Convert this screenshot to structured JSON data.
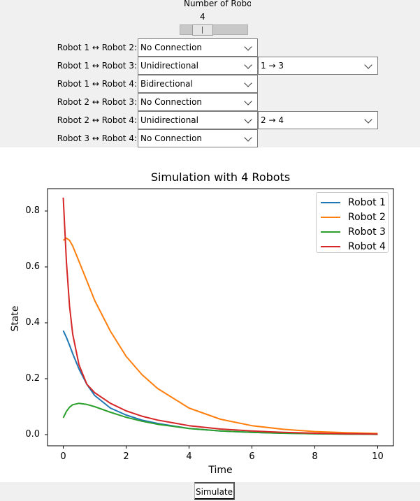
{
  "controls": {
    "robot_count": {
      "label": "Number of Robots",
      "value": "4",
      "min": 2,
      "max": 10,
      "current": 4
    },
    "connections": [
      {
        "label": "Robot 1 ↔ Robot 2:",
        "type": "No Connection",
        "direction": null
      },
      {
        "label": "Robot 1 ↔ Robot 3:",
        "type": "Unidirectional",
        "direction": "1 → 3"
      },
      {
        "label": "Robot 1 ↔ Robot 4:",
        "type": "Bidirectional",
        "direction": null
      },
      {
        "label": "Robot 2 ↔ Robot 3:",
        "type": "No Connection",
        "direction": null
      },
      {
        "label": "Robot 2 ↔ Robot 4:",
        "type": "Unidirectional",
        "direction": "2 → 4"
      },
      {
        "label": "Robot 3 ↔ Robot 4:",
        "type": "No Connection",
        "direction": null
      }
    ]
  },
  "chart_data": {
    "type": "line",
    "title": "Simulation with 4 Robots",
    "xlabel": "Time",
    "ylabel": "State",
    "xlim": [
      -0.5,
      10.5
    ],
    "ylim": [
      -0.04,
      0.88
    ],
    "xticks": [
      0,
      2,
      4,
      6,
      8,
      10
    ],
    "yticks": [
      0.0,
      0.2,
      0.4,
      0.6,
      0.8
    ],
    "grid": false,
    "legend_position": "top-right",
    "x": [
      0,
      0.1,
      0.2,
      0.3,
      0.5,
      0.75,
      1,
      1.5,
      2,
      2.5,
      3,
      4,
      5,
      6,
      7,
      8,
      9,
      10
    ],
    "series": [
      {
        "name": "Robot 1",
        "color": "#1f77b4",
        "values": [
          0.372,
          0.348,
          0.32,
          0.29,
          0.235,
          0.18,
          0.14,
          0.095,
          0.07,
          0.052,
          0.04,
          0.022,
          0.013,
          0.008,
          0.005,
          0.003,
          0.002,
          0.001
        ]
      },
      {
        "name": "Robot 2",
        "color": "#ff7f0e",
        "values": [
          0.695,
          0.703,
          0.695,
          0.675,
          0.62,
          0.55,
          0.48,
          0.37,
          0.28,
          0.215,
          0.165,
          0.095,
          0.055,
          0.032,
          0.019,
          0.011,
          0.007,
          0.004
        ]
      },
      {
        "name": "Robot 3",
        "color": "#2ca02c",
        "values": [
          0.06,
          0.083,
          0.098,
          0.107,
          0.112,
          0.108,
          0.1,
          0.08,
          0.062,
          0.048,
          0.037,
          0.022,
          0.013,
          0.008,
          0.005,
          0.003,
          0.002,
          0.001
        ]
      },
      {
        "name": "Robot 4",
        "color": "#d62728",
        "values": [
          0.848,
          0.62,
          0.46,
          0.36,
          0.25,
          0.18,
          0.15,
          0.112,
          0.085,
          0.066,
          0.052,
          0.032,
          0.02,
          0.013,
          0.008,
          0.005,
          0.003,
          0.002
        ]
      }
    ]
  },
  "footer": {
    "simulate_label": "Simulate"
  }
}
